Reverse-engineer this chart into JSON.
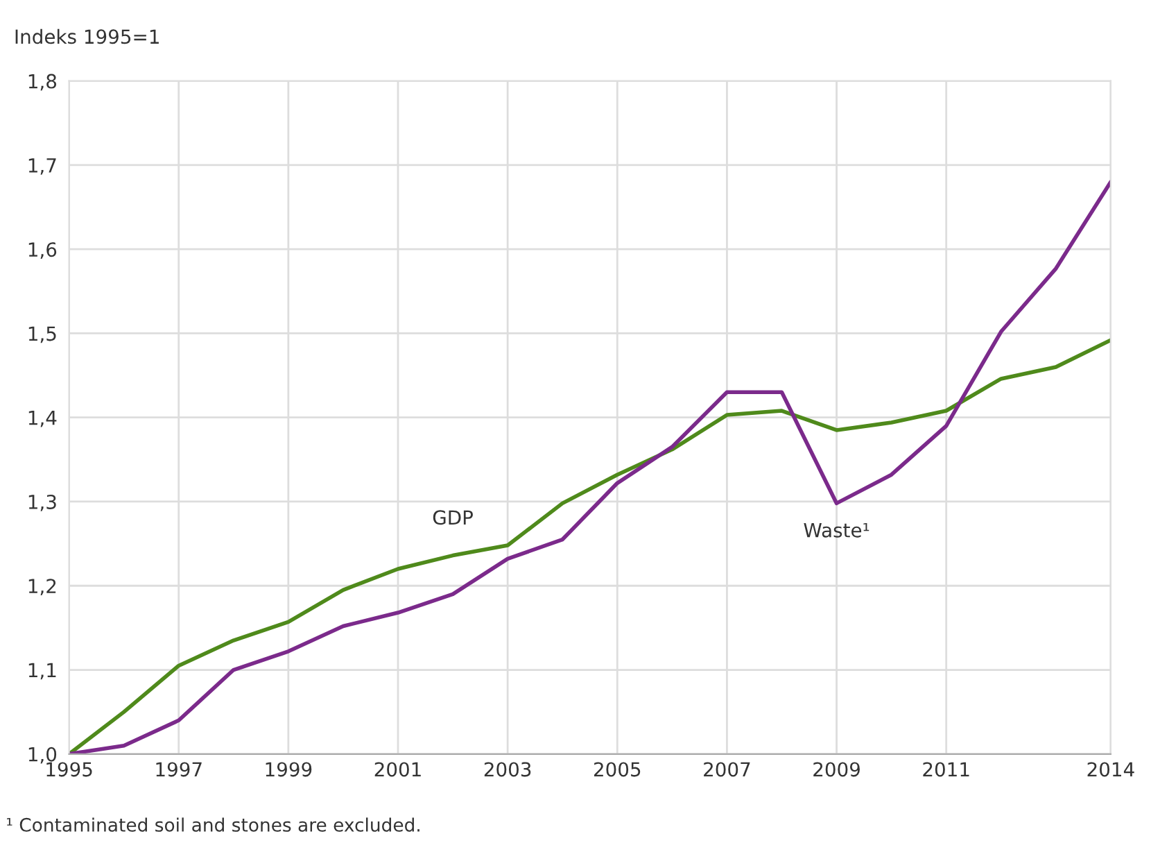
{
  "chart_data": {
    "type": "line",
    "ylabel": "Indeks 1995=1",
    "x": [
      1995,
      1996,
      1997,
      1998,
      1999,
      2000,
      2001,
      2002,
      2003,
      2004,
      2005,
      2006,
      2007,
      2008,
      2009,
      2010,
      2011,
      2012,
      2013,
      2014
    ],
    "series": [
      {
        "name": "GDP",
        "color": "#4f8a1b",
        "values": [
          1.0,
          1.05,
          1.105,
          1.135,
          1.157,
          1.195,
          1.22,
          1.236,
          1.248,
          1.298,
          1.332,
          1.362,
          1.403,
          1.408,
          1.385,
          1.394,
          1.408,
          1.446,
          1.46,
          1.492
        ]
      },
      {
        "name": "Waste¹",
        "color": "#7b2a8b",
        "values": [
          1.0,
          1.01,
          1.04,
          1.1,
          1.122,
          1.152,
          1.168,
          1.19,
          1.232,
          1.255,
          1.322,
          1.365,
          1.43,
          1.43,
          1.298,
          1.332,
          1.39,
          1.502,
          1.577,
          1.68
        ]
      }
    ],
    "xlim": [
      1995,
      2014
    ],
    "xticks": [
      1995,
      1997,
      1999,
      2001,
      2003,
      2005,
      2007,
      2009,
      2011,
      2014
    ],
    "ylim": [
      1.0,
      1.8
    ],
    "yticks": [
      {
        "value": 1.0,
        "label": "1,0"
      },
      {
        "value": 1.1,
        "label": "1,1"
      },
      {
        "value": 1.2,
        "label": "1,2"
      },
      {
        "value": 1.3,
        "label": "1,3"
      },
      {
        "value": 1.4,
        "label": "1,4"
      },
      {
        "value": 1.5,
        "label": "1,5"
      },
      {
        "value": 1.6,
        "label": "1,6"
      },
      {
        "value": 1.7,
        "label": "1,7"
      },
      {
        "value": 1.8,
        "label": "1,8"
      }
    ],
    "grid": true,
    "line_style": "solid",
    "annotations": [
      "¹ Contaminated soil and stones are excluded."
    ]
  }
}
